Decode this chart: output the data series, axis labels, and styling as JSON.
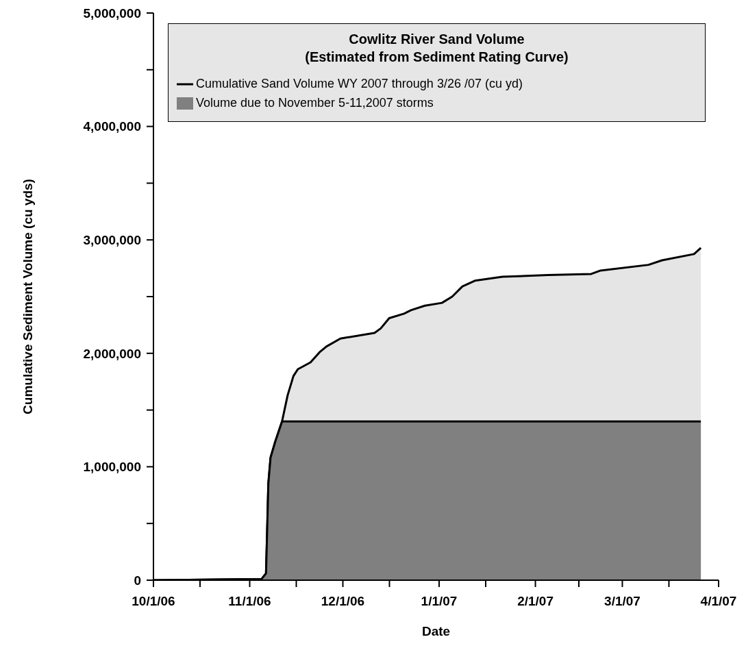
{
  "chart_data": {
    "type": "area",
    "title": "Cowlitz River Sand Volume\n(Estimated from Sediment Rating Curve)",
    "xlabel": "Date",
    "ylabel": "Cumulative Sediment Volume (cu yds)",
    "xlim": [
      "2006-10-01",
      "2007-04-01"
    ],
    "xticks": [
      {
        "value": "2006-10-01",
        "label": "10/1/06"
      },
      {
        "value": "2006-10-16",
        "label": null
      },
      {
        "value": "2006-11-01",
        "label": "11/1/06"
      },
      {
        "value": "2006-11-16",
        "label": null
      },
      {
        "value": "2006-12-01",
        "label": "12/1/06"
      },
      {
        "value": "2006-12-16",
        "label": null
      },
      {
        "value": "2007-01-01",
        "label": "1/1/07"
      },
      {
        "value": "2007-01-16",
        "label": null
      },
      {
        "value": "2007-02-01",
        "label": "2/1/07"
      },
      {
        "value": "2007-02-15",
        "label": null
      },
      {
        "value": "2007-03-01",
        "label": "3/1/07"
      },
      {
        "value": "2007-03-16",
        "label": null
      },
      {
        "value": "2007-04-01",
        "label": "4/1/07"
      }
    ],
    "ylim": [
      0,
      5000000
    ],
    "yticks": [
      {
        "value": 0,
        "label": "0"
      },
      {
        "value": 500000,
        "label": null
      },
      {
        "value": 1000000,
        "label": "1,000,000"
      },
      {
        "value": 1500000,
        "label": null
      },
      {
        "value": 2000000,
        "label": "2,000,000"
      },
      {
        "value": 2500000,
        "label": null
      },
      {
        "value": 3000000,
        "label": "3,000,000"
      },
      {
        "value": 3500000,
        "label": null
      },
      {
        "value": 4000000,
        "label": "4,000,000"
      },
      {
        "value": 4500000,
        "label": null
      },
      {
        "value": 5000000,
        "label": "5,000,000"
      }
    ],
    "grid": false,
    "legend": "top",
    "series": [
      {
        "name": "Cumulative Sand Volume WY 2007 through 3/26 /07 (cu yd)",
        "color": "#000000",
        "x": [
          "2006-10-01",
          "2006-11-04T19:00",
          "2006-11-06T06:00",
          "2006-11-06T14:00",
          "2006-11-07T00:00",
          "2006-11-07T17:00",
          "2006-11-09T05:00",
          "2006-11-11T10:00",
          "2006-11-13T05:00",
          "2006-11-15T02:00",
          "2006-11-16T12:00",
          "2006-11-20T14:00",
          "2006-11-23T12:00",
          "2006-11-25T17:00",
          "2006-11-30T05:00",
          "2006-12-11T05:00",
          "2006-12-13T05:00",
          "2006-12-15T22:00",
          "2006-12-20T17:00",
          "2006-12-22T22:00",
          "2006-12-27T10:00",
          "2007-01-01T22:00",
          "2007-01-05T05:00",
          "2007-01-08T12:00",
          "2007-01-12T12:00",
          "2007-01-21T10:00",
          "2007-02-05T02:00",
          "2007-02-19T00:00",
          "2007-02-22T00:00",
          "2007-03-09T10:00",
          "2007-03-13T19:00",
          "2007-03-24T02:00",
          "2007-03-26T07:00"
        ],
        "values": [
          0,
          10000,
          60000,
          400000,
          850000,
          1080000,
          1220000,
          1400000,
          1630000,
          1800000,
          1860000,
          1920000,
          2010000,
          2060000,
          2130000,
          2180000,
          2220000,
          2310000,
          2350000,
          2380000,
          2420000,
          2445000,
          2500000,
          2590000,
          2640000,
          2675000,
          2690000,
          2700000,
          2730000,
          2780000,
          2820000,
          2875000,
          2930000
        ]
      },
      {
        "name": "Volume due to November 5-11,2007 storms",
        "color": "#808080",
        "x": [
          "2006-10-01",
          "2006-11-04T19:00",
          "2006-11-06T06:00",
          "2006-11-06T14:00",
          "2006-11-07T00:00",
          "2006-11-07T17:00",
          "2006-11-09T05:00",
          "2006-11-11T10:00",
          "2007-03-26T07:00"
        ],
        "values": [
          0,
          10000,
          60000,
          400000,
          850000,
          1080000,
          1220000,
          1400000,
          1400000
        ]
      }
    ]
  }
}
